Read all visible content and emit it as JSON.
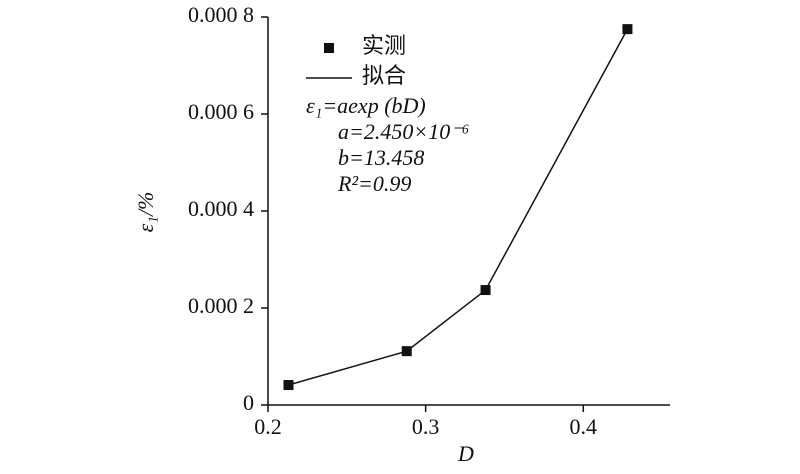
{
  "chart_data": {
    "type": "line",
    "x_label": "D",
    "y_label": "ε₁/%",
    "annotations": [
      "ε₁=aexp (bD)",
      "a=2.450×10⁻⁶",
      "b=13.458",
      "R²=0.99"
    ],
    "series": [
      {
        "name": "实测",
        "color": "#111111",
        "marker": "square",
        "x": [
          0.213,
          0.288,
          0.338,
          0.428
        ],
        "values": [
          4.12e-05,
          0.000111,
          0.000237,
          0.000775
        ]
      },
      {
        "name": "拟合",
        "color": "#111111",
        "marker": "none",
        "x": [
          0.213,
          0.288,
          0.338,
          0.428
        ],
        "values": [
          4.12e-05,
          0.000111,
          0.000237,
          0.000775
        ]
      }
    ],
    "xlim": [
      0.2,
      0.455
    ],
    "xticks": [
      0.2,
      0.3,
      0.4
    ],
    "ylim": [
      0,
      0.0008
    ],
    "yticks": [
      0,
      {
        "value": 0.0002,
        "label": "0.000 2"
      },
      {
        "value": 0.0004,
        "label": "0.000 4"
      },
      {
        "value": 0.0006,
        "label": "0.000 6"
      },
      {
        "value": 0.0008,
        "label": "0.000 8"
      }
    ]
  }
}
